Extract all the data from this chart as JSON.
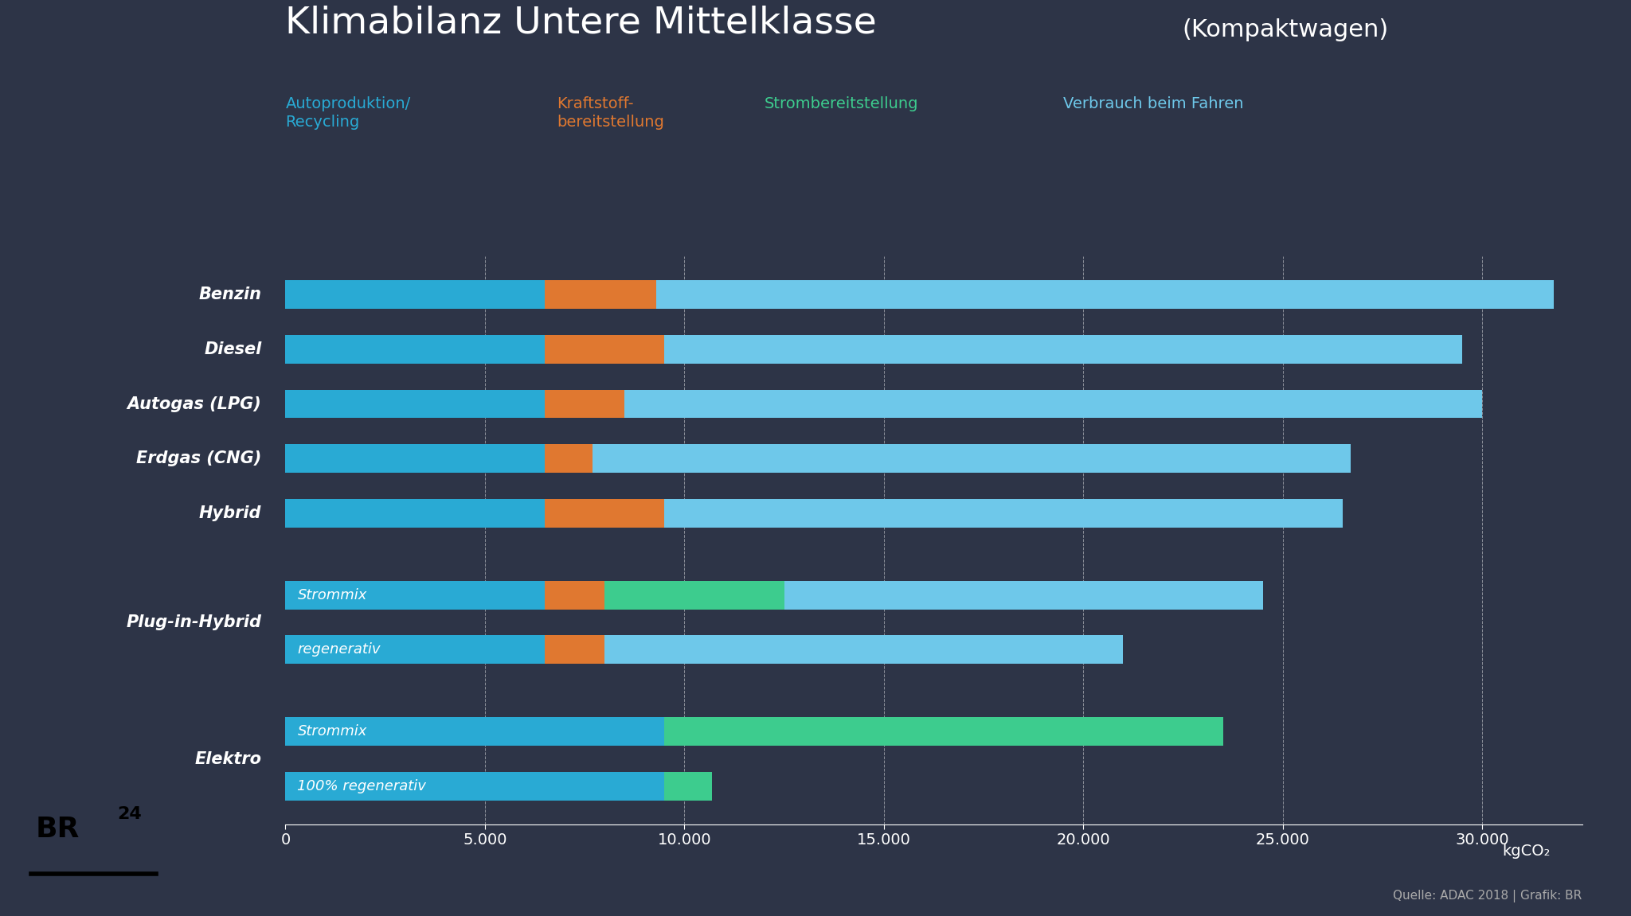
{
  "title_main": "Klimabilanz Untere Mittelklasse",
  "title_sub": " (Kompaktwagen)",
  "background_color": "#2d3447",
  "color_auto": "#29aad4",
  "color_kraft": "#e07830",
  "color_strom": "#3dcc8e",
  "color_fahren": "#6ec8ea",
  "color_label_blue": "#29aad4",
  "color_label_orange": "#e07830",
  "color_label_green": "#3dcc8e",
  "color_label_lightblue": "#6ec8ea",
  "legend_labels": [
    "Autoproduktion/\nRecycling",
    "Kraftstoff-\nbereitstellung",
    "Strombereitstellung",
    "Verbrauch beim Fahren"
  ],
  "bars": [
    {
      "label": "Benzin",
      "group": null,
      "sublabel": null,
      "auto": 6500,
      "kraft": 2800,
      "strom": 0,
      "fahren": 22500
    },
    {
      "label": "Diesel",
      "group": null,
      "sublabel": null,
      "auto": 6500,
      "kraft": 3000,
      "strom": 0,
      "fahren": 20000
    },
    {
      "label": "Autogas (LPG)",
      "group": null,
      "sublabel": null,
      "auto": 6500,
      "kraft": 2000,
      "strom": 0,
      "fahren": 21500
    },
    {
      "label": "Erdgas (CNG)",
      "group": null,
      "sublabel": null,
      "auto": 6500,
      "kraft": 1200,
      "strom": 0,
      "fahren": 19000
    },
    {
      "label": "Hybrid",
      "group": null,
      "sublabel": null,
      "auto": 6500,
      "kraft": 3000,
      "strom": 0,
      "fahren": 17000
    },
    {
      "label": null,
      "group": "Plug-in-Hybrid",
      "sublabel": "Strommix",
      "auto": 6500,
      "kraft": 1500,
      "strom": 4500,
      "fahren": 12000
    },
    {
      "label": null,
      "group": "Plug-in-Hybrid",
      "sublabel": "regenerativ",
      "auto": 6500,
      "kraft": 1500,
      "strom": 0,
      "fahren": 13000
    },
    {
      "label": null,
      "group": "Elektro",
      "sublabel": "Strommix",
      "auto": 9500,
      "kraft": 0,
      "strom": 14000,
      "fahren": 0
    },
    {
      "label": null,
      "group": "Elektro",
      "sublabel": "100% regenerativ",
      "auto": 9500,
      "kraft": 0,
      "strom": 1200,
      "fahren": 0
    }
  ],
  "xlim": [
    0,
    32500
  ],
  "xticks": [
    0,
    5000,
    10000,
    15000,
    20000,
    25000,
    30000
  ],
  "xlabel": "kgCO₂",
  "source": "Quelle: ADAC 2018 | Grafik: BR"
}
